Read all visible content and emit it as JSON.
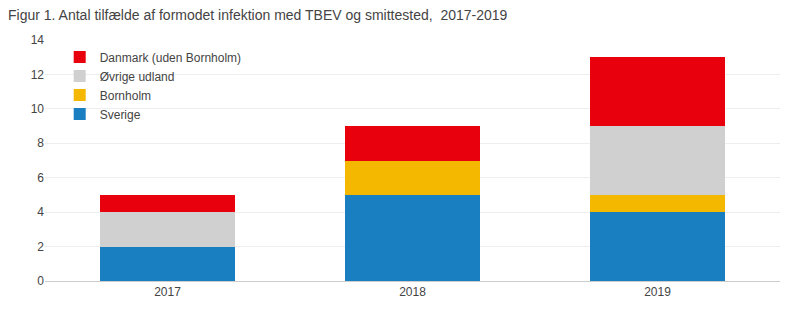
{
  "chart_data": {
    "type": "bar",
    "title": "Figur 1. Antal tilfælde af formodet infektion med TBEV og smittested,  2017-2019",
    "categories": [
      "2017",
      "2018",
      "2019"
    ],
    "series": [
      {
        "name": "Sverige",
        "color": "#1a7fc1",
        "values": [
          2,
          5,
          4
        ]
      },
      {
        "name": "Bornholm",
        "color": "#f5b800",
        "values": [
          0,
          2,
          1
        ]
      },
      {
        "name": "Øvrige udland",
        "color": "#d0d0d0",
        "values": [
          2,
          0,
          4
        ]
      },
      {
        "name": "Danmark (uden Bornholm)",
        "color": "#e8000d",
        "values": [
          1,
          2,
          4
        ]
      }
    ],
    "stacked": true,
    "ylim": [
      0,
      14
    ],
    "yticks": [
      0,
      2,
      4,
      6,
      8,
      10,
      12,
      14
    ],
    "grid": true,
    "legend": "upper left"
  }
}
